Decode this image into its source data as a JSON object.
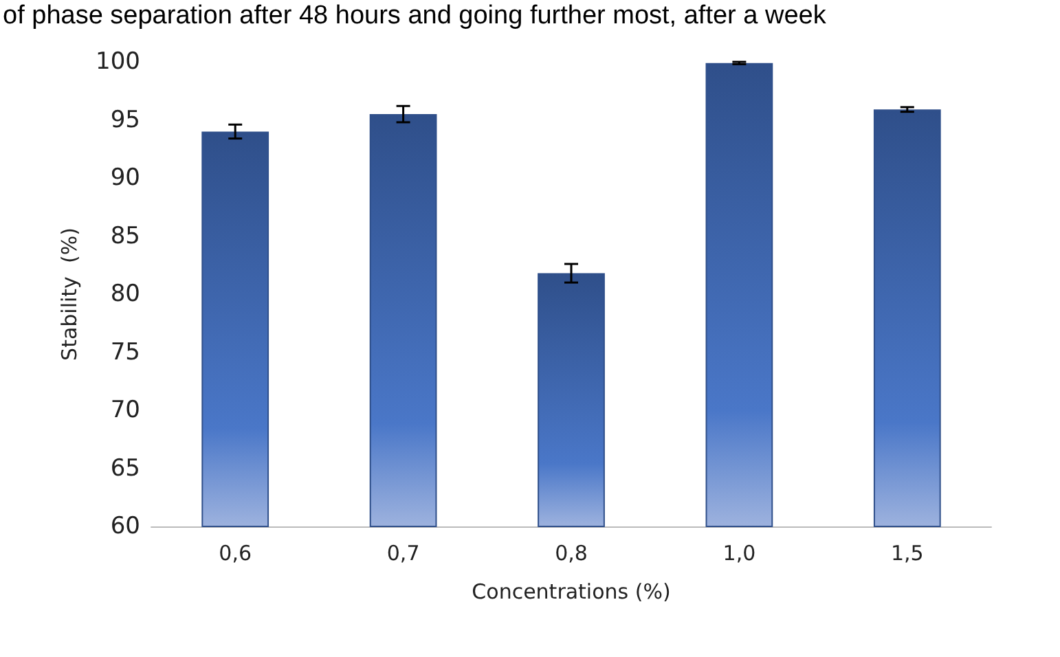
{
  "chart_data": {
    "type": "bar",
    "xlabel": "Concentrations (%)",
    "ylabel": "Stability  (%)",
    "annotations": [
      "of phase separation after 48 hours and going further most, after a week"
    ],
    "categories": [
      "0,6",
      "0,7",
      "0,8",
      "1,0",
      "1,5"
    ],
    "values": [
      94.0,
      95.5,
      81.8,
      99.9,
      95.9
    ],
    "errors": [
      0.6,
      0.7,
      0.8,
      0.1,
      0.2
    ],
    "color": "#2f4f8a",
    "ylim": [
      60,
      100
    ],
    "yticks": [
      60,
      65,
      70,
      75,
      80,
      85,
      90,
      95,
      100
    ],
    "grid": false
  }
}
